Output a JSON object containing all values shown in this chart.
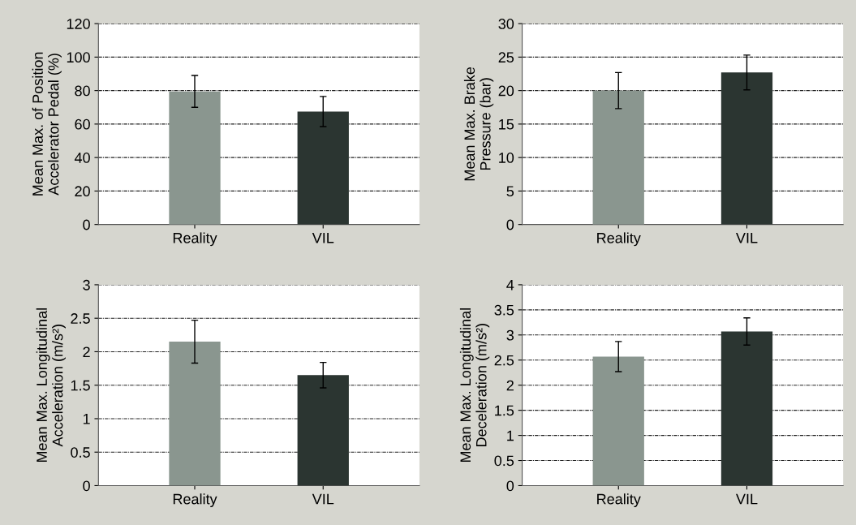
{
  "chart_data": [
    {
      "type": "bar",
      "ylabel": "Mean Max. of Position\nAccelerator Pedal (%)",
      "categories": [
        "Reality",
        "VIL"
      ],
      "values": [
        79.5,
        67.5
      ],
      "errors": [
        9.5,
        9
      ],
      "colors": [
        "#8a968f",
        "#2b3531"
      ],
      "ylim": [
        0,
        120
      ],
      "yticks": [
        0,
        20,
        40,
        60,
        80,
        100,
        120
      ],
      "grid": "y"
    },
    {
      "type": "bar",
      "ylabel": "Mean Max. Brake\nPressure (bar)",
      "categories": [
        "Reality",
        "VIL"
      ],
      "values": [
        20,
        22.7
      ],
      "errors": [
        2.7,
        2.6
      ],
      "colors": [
        "#8a968f",
        "#2b3531"
      ],
      "ylim": [
        0,
        30
      ],
      "yticks": [
        0,
        5,
        10,
        15,
        20,
        25,
        30
      ],
      "grid": "y"
    },
    {
      "type": "bar",
      "ylabel": "Mean Max. Longitudinal\nAcceleration (m/s²)",
      "categories": [
        "Reality",
        "VIL"
      ],
      "values": [
        2.15,
        1.65
      ],
      "errors": [
        0.32,
        0.19
      ],
      "colors": [
        "#8a968f",
        "#2b3531"
      ],
      "ylim": [
        0,
        3
      ],
      "yticks": [
        0,
        0.5,
        1,
        1.5,
        2,
        2.5,
        3
      ],
      "grid": "y"
    },
    {
      "type": "bar",
      "ylabel": "Mean Max. Longitudinal\nDeceleration (m/s²)",
      "categories": [
        "Reality",
        "VIL"
      ],
      "values": [
        2.57,
        3.07
      ],
      "errors": [
        0.3,
        0.27
      ],
      "colors": [
        "#8a968f",
        "#2b3531"
      ],
      "ylim": [
        0,
        4
      ],
      "yticks": [
        0,
        0.5,
        1,
        1.5,
        2,
        2.5,
        3,
        3.5,
        4
      ],
      "grid": "y"
    }
  ]
}
